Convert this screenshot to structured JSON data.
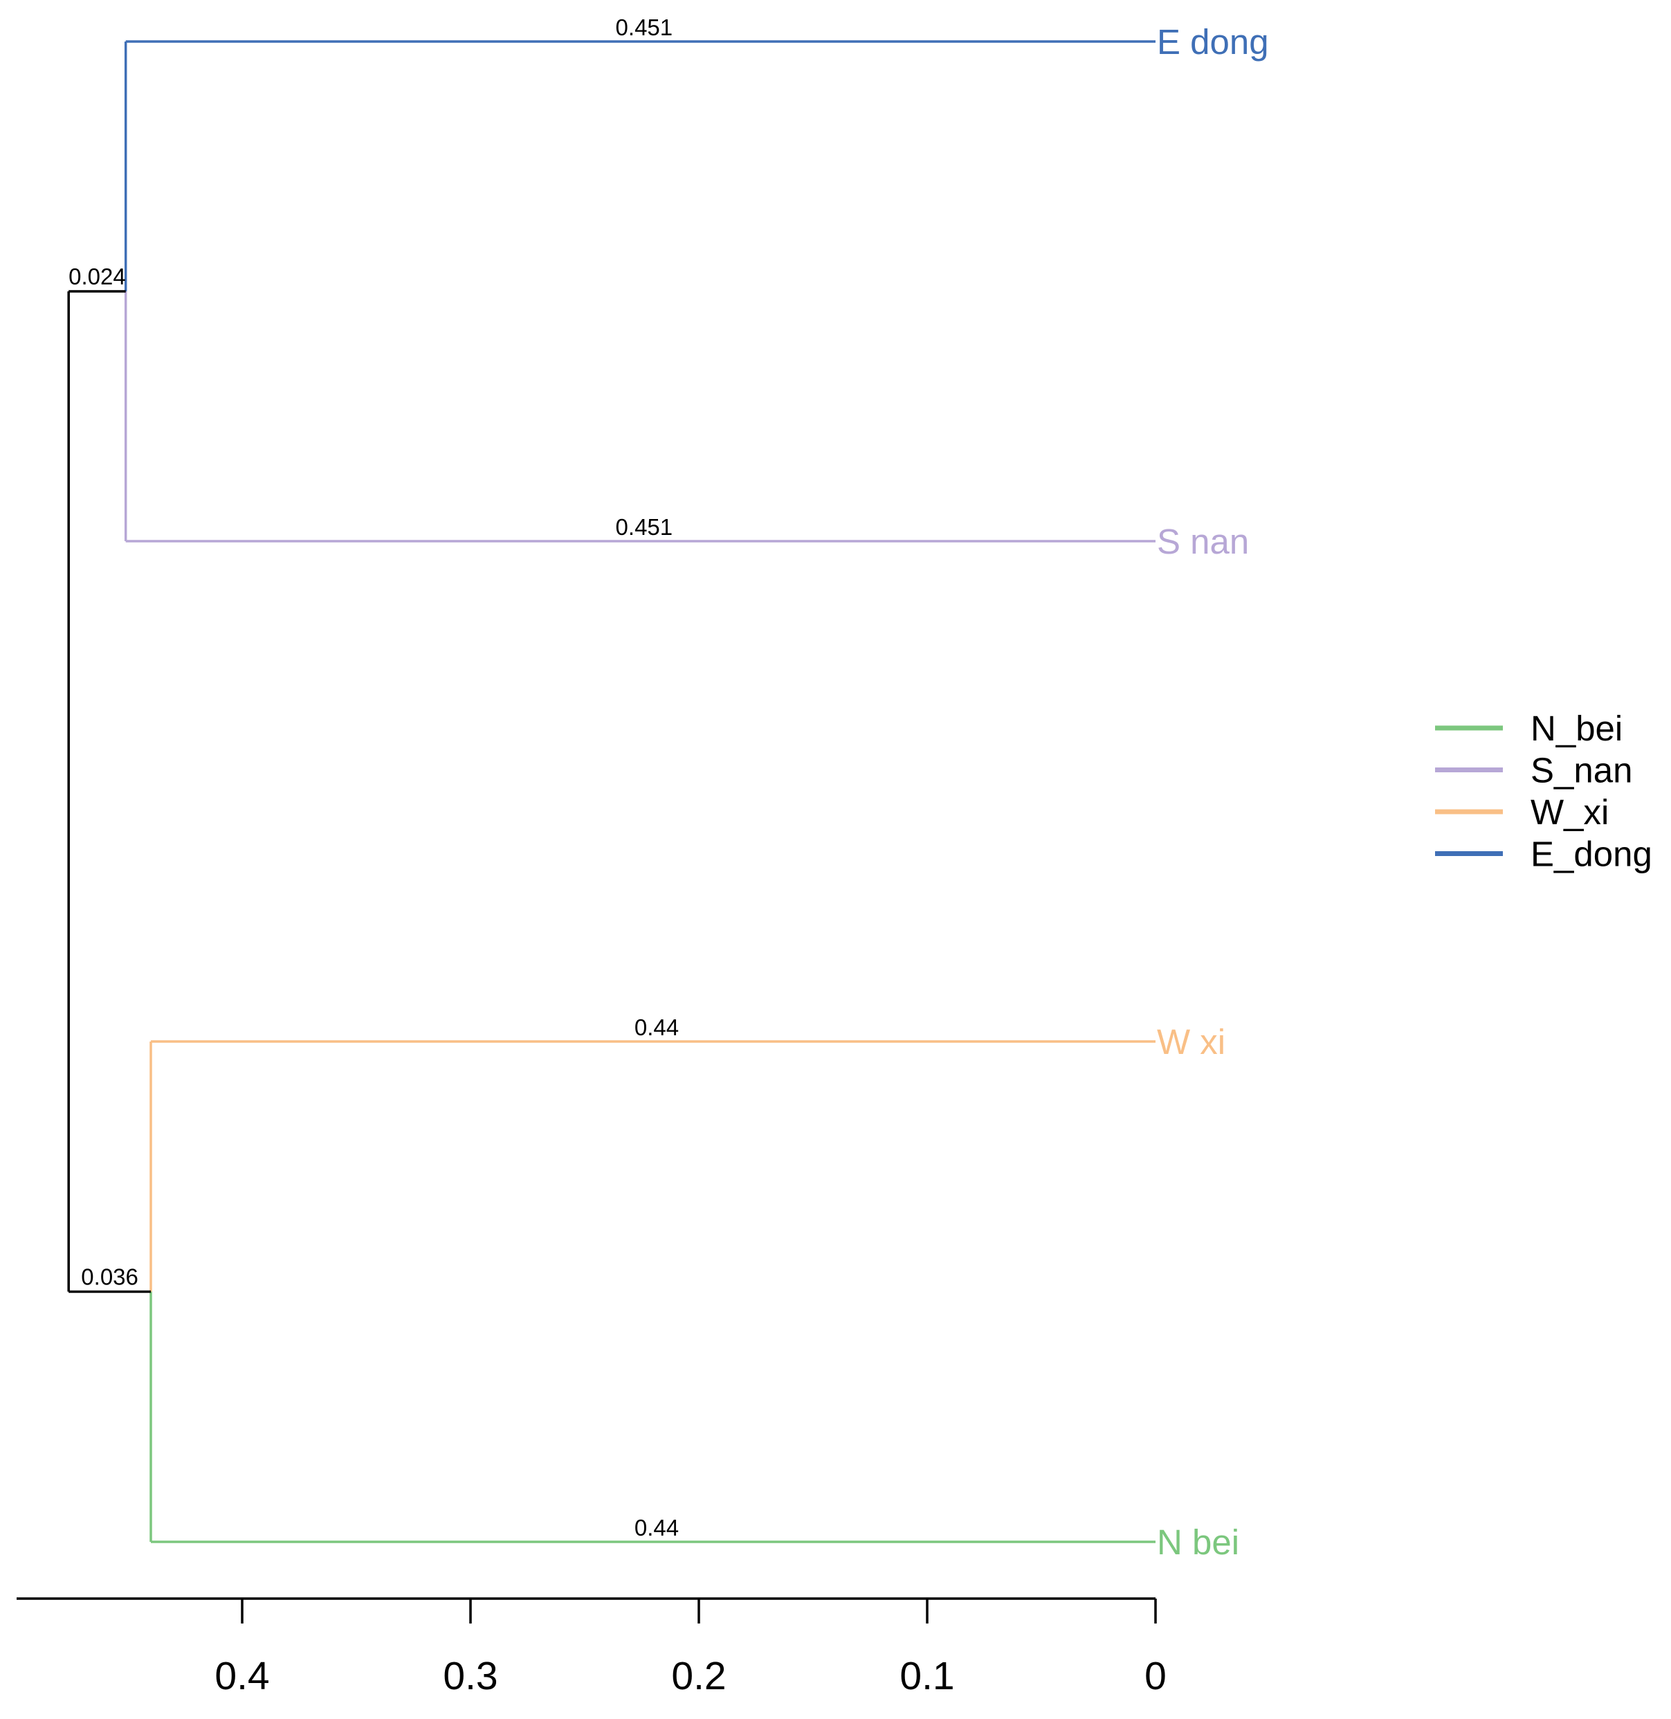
{
  "chart_data": {
    "type": "dendrogram",
    "x_axis": {
      "ticks": [
        0.4,
        0.3,
        0.2,
        0.1,
        0
      ],
      "tick_labels": [
        "0.4",
        "0.3",
        "0.2",
        "0.1",
        "0"
      ],
      "reversed": true
    },
    "leaves": [
      {
        "name": "E_dong",
        "label": "E dong",
        "branch_length": 0.451,
        "branch_label": "0.451",
        "color": "#3f6fb6"
      },
      {
        "name": "S_nan",
        "label": "S nan",
        "branch_length": 0.451,
        "branch_label": "0.451",
        "color": "#b7a7d6"
      },
      {
        "name": "W_xi",
        "label": "W xi",
        "branch_length": 0.44,
        "branch_label": "0.44",
        "color": "#f9bf86"
      },
      {
        "name": "N_bei",
        "label": "N bei",
        "branch_length": 0.44,
        "branch_label": "0.44",
        "color": "#7cc77e"
      }
    ],
    "internal_nodes": [
      {
        "name": "E_dong+S_nan",
        "height": 0.451,
        "branch_length": 0.024,
        "branch_label": "0.024"
      },
      {
        "name": "W_xi+N_bei",
        "height": 0.44,
        "branch_length": 0.036,
        "branch_label": "0.036"
      }
    ],
    "root_height": 0.476,
    "legend": {
      "position": "right",
      "entries": [
        {
          "label": "N_bei",
          "color": "#7cc77e"
        },
        {
          "label": "S_nan",
          "color": "#b7a7d6"
        },
        {
          "label": "W_xi",
          "color": "#f9bf86"
        },
        {
          "label": "E_dong",
          "color": "#3f6fb6"
        }
      ]
    },
    "root_color": "#000000",
    "grid": false
  }
}
